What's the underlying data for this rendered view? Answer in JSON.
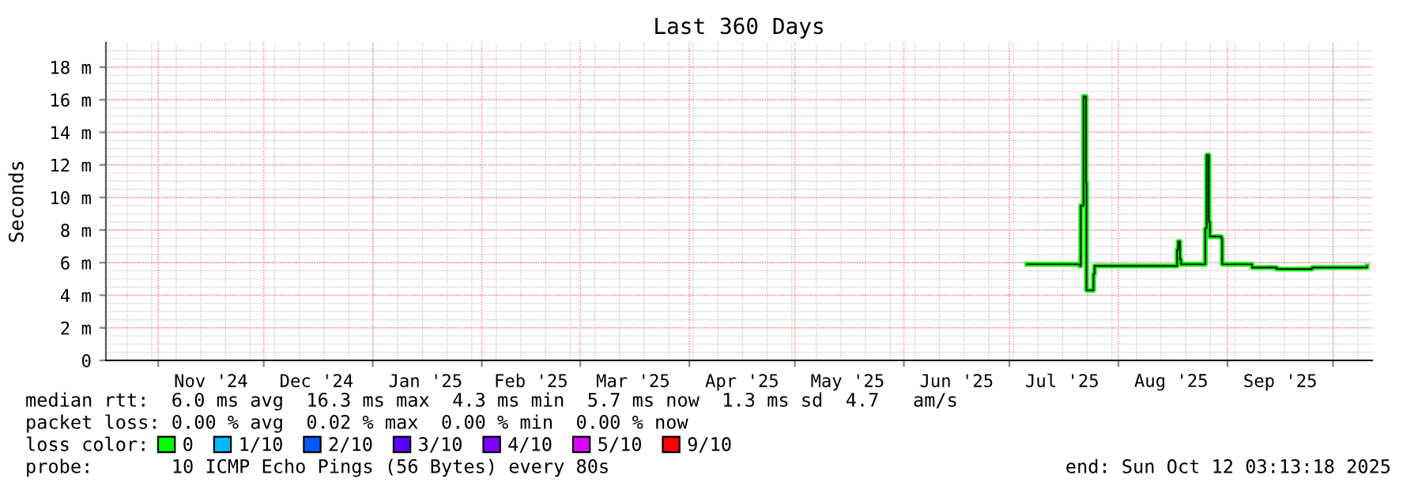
{
  "chart_data": {
    "type": "step",
    "title": "Last 360 Days",
    "ylabel": "Seconds",
    "legend_title": "loss color:",
    "x": [
      "2025-07-06",
      "2025-07-10",
      "2025-07-21",
      "2025-07-21T07:00",
      "2025-07-22T02:00",
      "2025-07-22T19:00",
      "2025-07-22T22:00",
      "2025-07-24T17:00",
      "2025-07-24T22:00",
      "2025-07-25T05:00",
      "2025-08-05",
      "2025-08-17T10:00",
      "2025-08-17T17:00",
      "2025-08-18T00:00",
      "2025-08-18T12:00",
      "2025-08-18T19:00",
      "2025-08-25T12:00",
      "2025-08-25T17:00",
      "2025-08-26T02:00",
      "2025-08-26T14:00",
      "2025-08-26T17:00",
      "2025-08-27T00:00",
      "2025-08-30T05:00",
      "2025-08-30T12:00",
      "2025-09-08",
      "2025-09-15",
      "2025-09-25",
      "2025-10-10T17:00"
    ],
    "series": [
      {
        "name": "0",
        "color": "#00ff00",
        "values": [
          5.9,
          5.9,
          5.8,
          9.5,
          16.2,
          10.9,
          4.3,
          4.3,
          5.3,
          5.8,
          5.8,
          5.8,
          6.8,
          7.3,
          6.2,
          5.9,
          5.9,
          8.1,
          12.6,
          12.6,
          8.5,
          7.6,
          7.5,
          5.9,
          5.7,
          5.6,
          5.7,
          5.8
        ]
      },
      {
        "name": "1/10",
        "color": "#00b8ff",
        "values": [
          null,
          null,
          null,
          null,
          null,
          null,
          null,
          null,
          null,
          null,
          null,
          null,
          null,
          null,
          null,
          null,
          null,
          null,
          null,
          null,
          null,
          null,
          null,
          null,
          null,
          null,
          null,
          null
        ]
      },
      {
        "name": "2/10",
        "color": "#0059ff",
        "values": [
          null,
          null,
          null,
          null,
          null,
          null,
          null,
          null,
          null,
          null,
          null,
          null,
          null,
          null,
          null,
          null,
          null,
          null,
          null,
          null,
          null,
          null,
          null,
          null,
          null,
          null,
          null,
          null
        ]
      },
      {
        "name": "3/10",
        "color": "#5e00ff",
        "values": [
          null,
          null,
          null,
          null,
          null,
          null,
          null,
          null,
          null,
          null,
          null,
          null,
          null,
          null,
          null,
          null,
          null,
          null,
          null,
          null,
          null,
          null,
          null,
          null,
          null,
          null,
          null,
          null
        ]
      },
      {
        "name": "4/10",
        "color": "#7e00ff",
        "values": [
          null,
          null,
          null,
          null,
          null,
          null,
          null,
          null,
          null,
          null,
          null,
          null,
          null,
          null,
          null,
          null,
          null,
          null,
          null,
          null,
          null,
          null,
          null,
          null,
          null,
          null,
          null,
          null
        ]
      },
      {
        "name": "5/10",
        "color": "#dd00ff",
        "values": [
          null,
          null,
          null,
          null,
          null,
          null,
          null,
          null,
          null,
          null,
          null,
          null,
          null,
          null,
          null,
          null,
          null,
          null,
          null,
          null,
          null,
          null,
          null,
          null,
          null,
          null,
          null,
          null
        ]
      },
      {
        "name": "9/10",
        "color": "#ff0000",
        "values": [
          null,
          null,
          null,
          null,
          null,
          null,
          null,
          null,
          null,
          null,
          null,
          null,
          null,
          null,
          null,
          null,
          null,
          null,
          null,
          null,
          null,
          null,
          null,
          null,
          null,
          null,
          null,
          null
        ]
      }
    ],
    "xlim": [
      "2024-10-17T03:13",
      "2025-10-12T03:13"
    ],
    "xticks": [
      {
        "value": "2024-11-01",
        "label": null
      },
      {
        "value": "2024-11-16",
        "label": "Nov '24"
      },
      {
        "value": "2024-12-01",
        "label": null
      },
      {
        "value": "2024-12-16",
        "label": "Dec '24"
      },
      {
        "value": "2025-01-01",
        "label": null
      },
      {
        "value": "2025-01-16",
        "label": "Jan '25"
      },
      {
        "value": "2025-02-01",
        "label": null
      },
      {
        "value": "2025-02-15",
        "label": "Feb '25"
      },
      {
        "value": "2025-03-01",
        "label": null
      },
      {
        "value": "2025-03-16",
        "label": "Mar '25"
      },
      {
        "value": "2025-04-01",
        "label": null
      },
      {
        "value": "2025-04-16",
        "label": "Apr '25"
      },
      {
        "value": "2025-05-01",
        "label": null
      },
      {
        "value": "2025-05-16",
        "label": "May '25"
      },
      {
        "value": "2025-06-01",
        "label": null
      },
      {
        "value": "2025-06-16",
        "label": "Jun '25"
      },
      {
        "value": "2025-07-01",
        "label": null
      },
      {
        "value": "2025-07-16",
        "label": "Jul '25"
      },
      {
        "value": "2025-08-01",
        "label": null
      },
      {
        "value": "2025-08-16",
        "label": "Aug '25"
      },
      {
        "value": "2025-09-01",
        "label": null
      },
      {
        "value": "2025-09-16",
        "label": "Sep '25"
      },
      {
        "value": "2025-10-01",
        "label": null
      }
    ],
    "ylim": [
      0,
      19.5
    ],
    "yticks": [
      0,
      {
        "value": 2,
        "label": "2 m"
      },
      {
        "value": 4,
        "label": "4 m"
      },
      {
        "value": 6,
        "label": "6 m"
      },
      {
        "value": 8,
        "label": "8 m"
      },
      {
        "value": 10,
        "label": "10 m"
      },
      {
        "value": 12,
        "label": "12 m"
      },
      {
        "value": 14,
        "label": "14 m"
      },
      {
        "value": 16,
        "label": "16 m"
      },
      {
        "value": 18,
        "label": "18 m"
      }
    ],
    "grid": true,
    "legend": "bottom",
    "annotations": [
      "median rtt:  6.0 ms avg  16.3 ms max  4.3 ms min  5.7 ms now  1.3 ms sd  4.7   am/s",
      "packet loss: 0.00 % avg  0.02 % max  0.00 % min  0.00 % now",
      "probe:       10 ICMP Echo Pings (56 Bytes) every 80s",
      "end: Sun Oct 12 03:13:18 2025"
    ]
  }
}
